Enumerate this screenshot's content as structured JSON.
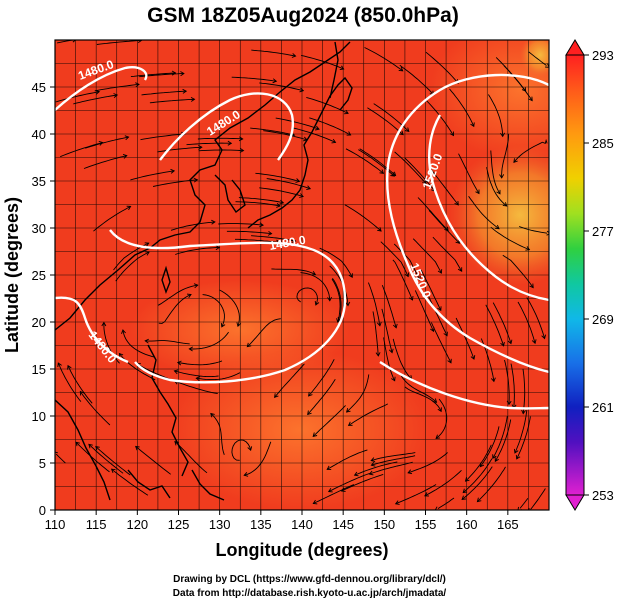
{
  "title": "GSM 18Z05Aug2024 (850.0hPa)",
  "xlabel": "Longitude (degrees)",
  "ylabel": "Latitude  (degrees)",
  "x_ticks": [
    "110",
    "115",
    "120",
    "125",
    "130",
    "135",
    "140",
    "145",
    "150",
    "155",
    "160",
    "165"
  ],
  "y_ticks": [
    "0",
    "5",
    "10",
    "15",
    "20",
    "25",
    "30",
    "35",
    "40",
    "45"
  ],
  "colorbar_ticks": [
    "293",
    "285",
    "277",
    "269",
    "261",
    "253"
  ],
  "contour_labels": [
    "1480.0",
    "1480.0",
    "1480.0",
    "1480.0",
    "1520.0",
    "1520.0"
  ],
  "credit_line1": "Drawing by DCL (https://www.gfd-dennou.org/library/dcl/)",
  "credit_line2": "Data from http://database.rish.kyoto-u.ac.jp/arch/jmadata/",
  "colors": {
    "field_base": "#f03c1e",
    "field_warm": "#ff6a28",
    "field_cool": "#f5a040",
    "contour": "#ffffff",
    "colorbar_top": "#ff1a1a",
    "colorbar_bottom": "#d000d0"
  },
  "map": {
    "lon_range": [
      110,
      170
    ],
    "lat_range": [
      0,
      50
    ],
    "grid": true,
    "field": "temperature",
    "overlays": [
      "streamlines",
      "geopotential contours",
      "coastlines"
    ]
  }
}
